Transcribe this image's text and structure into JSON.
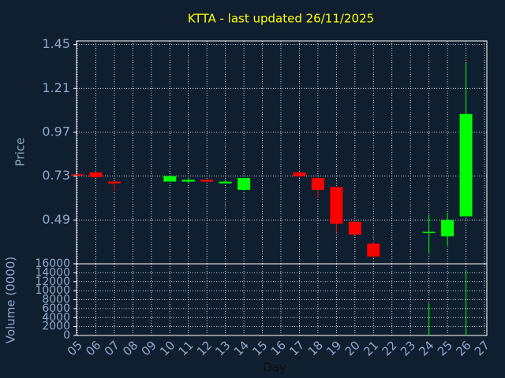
{
  "chart_data": [
    {
      "type": "candlestick",
      "title": "KTTA - last updated 26/11/2025",
      "ylabel": "Price",
      "categories": [
        "05",
        "06",
        "07",
        "08",
        "09",
        "10",
        "11",
        "12",
        "13",
        "14",
        "15",
        "16",
        "17",
        "18",
        "19",
        "20",
        "21",
        "22",
        "23",
        "24",
        "25",
        "26",
        "27"
      ],
      "open": [
        0.74,
        0.75,
        0.7,
        null,
        null,
        0.7,
        0.7,
        0.71,
        0.69,
        0.655,
        null,
        null,
        0.75,
        0.72,
        0.67,
        0.48,
        0.36,
        null,
        null,
        0.42,
        0.4,
        0.51,
        null
      ],
      "high": [
        0.74,
        0.75,
        0.7,
        null,
        null,
        0.73,
        0.72,
        0.71,
        0.71,
        0.72,
        null,
        null,
        0.75,
        0.72,
        0.67,
        0.48,
        0.37,
        null,
        null,
        0.52,
        0.53,
        1.35,
        null
      ],
      "low": [
        0.73,
        0.72,
        0.65,
        null,
        null,
        0.7,
        0.69,
        0.7,
        0.69,
        0.65,
        null,
        null,
        0.72,
        0.61,
        0.42,
        0.41,
        0.28,
        null,
        null,
        0.31,
        0.35,
        0.51,
        null
      ],
      "close": [
        0.735,
        0.724,
        0.69,
        null,
        null,
        0.73,
        0.71,
        0.7,
        0.7,
        0.72,
        null,
        null,
        0.73,
        0.655,
        0.47,
        0.41,
        0.29,
        null,
        null,
        0.425,
        0.49,
        1.07,
        null
      ],
      "up_color": "#00ff00",
      "down_color": "#ff0000",
      "ylim": [
        0.25,
        1.47
      ],
      "yticks": [
        1.45,
        1.21,
        0.97,
        0.73,
        0.49
      ],
      "grid": true
    },
    {
      "type": "bar",
      "ylabel": "Volume (0000)",
      "xlabel": "Day",
      "color": "#00ff00",
      "categories": [
        "05",
        "06",
        "07",
        "08",
        "09",
        "10",
        "11",
        "12",
        "13",
        "14",
        "15",
        "16",
        "17",
        "18",
        "19",
        "20",
        "21",
        "22",
        "23",
        "24",
        "25",
        "26",
        "27"
      ],
      "values": [
        0,
        0,
        0,
        null,
        null,
        0,
        0,
        0,
        0,
        0,
        null,
        null,
        0,
        0,
        0,
        0,
        0,
        null,
        null,
        7200,
        0,
        14600,
        null
      ],
      "ylim": [
        0,
        16000
      ],
      "yticks": [
        0,
        2000,
        4000,
        6000,
        8000,
        10000,
        12000,
        14000,
        16000
      ],
      "grid": true
    }
  ]
}
